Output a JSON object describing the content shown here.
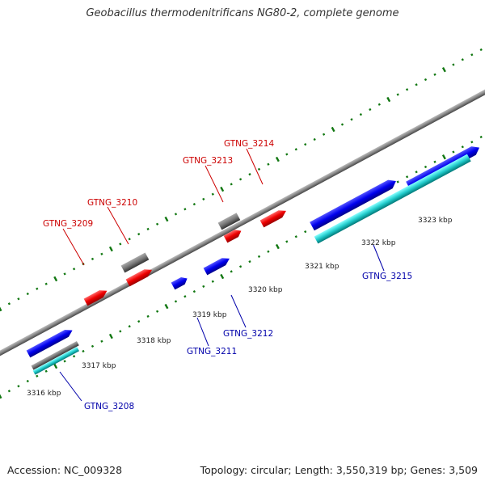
{
  "title": "Geobacillus thermodenitrificans NG80-2, complete genome",
  "footer": {
    "accession": "Accession: NC_009328",
    "stats": "Topology: circular; Length: 3,550,319 bp; Genes: 3,509"
  },
  "colors": {
    "forward": "#ff0000",
    "reverse": "#0000ee",
    "gray_gene": "#777777",
    "teal_gene": "#22cccc",
    "backbone": "#888888",
    "ticks": "#117711"
  },
  "tick_labels": [
    "3316 kbp",
    "3317 kbp",
    "3318 kbp",
    "3319 kbp",
    "3320 kbp",
    "3321 kbp",
    "3322 kbp",
    "3323 kbp"
  ],
  "gene_labels": {
    "forward": [
      "GTNG_3209",
      "GTNG_3210",
      "GTNG_3213",
      "GTNG_3214"
    ],
    "reverse": [
      "GTNG_3208",
      "GTNG_3211",
      "GTNG_3212",
      "GTNG_3215"
    ]
  }
}
